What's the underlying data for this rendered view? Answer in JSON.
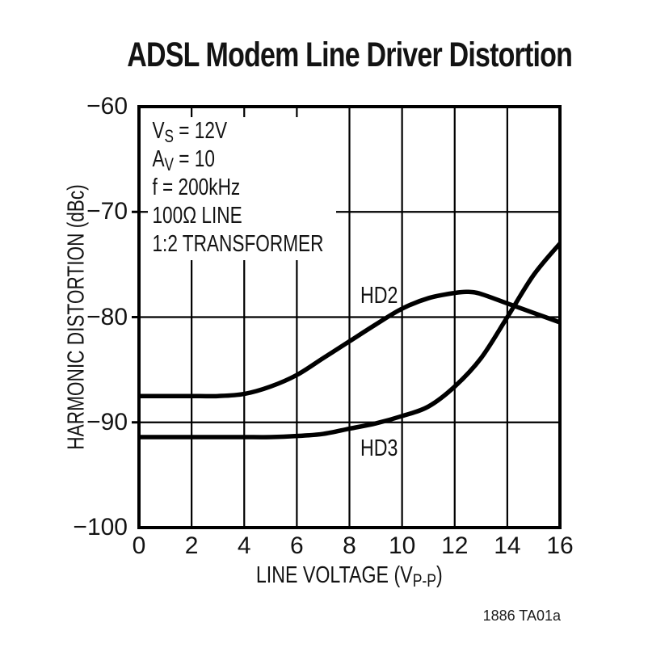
{
  "page": {
    "title": "ADSL Modem Line Driver Distortion",
    "figure_number": "1886 TA01a"
  },
  "annotation": {
    "lines": [
      {
        "pre": "V",
        "sub": "S",
        "post": " = 12V"
      },
      {
        "pre": "A",
        "sub": "V",
        "post": " = 10"
      },
      {
        "pre": "f = 200kHz",
        "sub": "",
        "post": ""
      },
      {
        "pre": "100Ω LINE",
        "sub": "",
        "post": ""
      },
      {
        "pre": "1:2 TRANSFORMER",
        "sub": "",
        "post": ""
      }
    ]
  },
  "chart_data": {
    "type": "line",
    "title": "ADSL Modem Line Driver Distortion",
    "ylabel": "HARMONIC DISTORTION (dBc)",
    "xlabel_parts": {
      "pre": "LINE VOLTAGE (V",
      "sub": "P-P",
      "post": ")"
    },
    "xlim": [
      0,
      16
    ],
    "ylim": [
      -100,
      -60
    ],
    "xticks": [
      0,
      2,
      4,
      6,
      8,
      10,
      12,
      14,
      16
    ],
    "yticks": [
      -60,
      -70,
      -80,
      -90,
      -100
    ],
    "grid": true,
    "legend_position": "inline-curve-labels",
    "line_color": "#000000",
    "conditions": [
      "VS = 12V",
      "AV = 10",
      "f = 200kHz",
      "100Ω LINE",
      "1:2 TRANSFORMER"
    ],
    "series": [
      {
        "name": "HD2",
        "label_pos": {
          "x": 8.4,
          "y": -78.0
        },
        "points": [
          [
            0,
            -87.5
          ],
          [
            1,
            -87.5
          ],
          [
            2,
            -87.5
          ],
          [
            3,
            -87.5
          ],
          [
            4,
            -87.3
          ],
          [
            5,
            -86.6
          ],
          [
            6,
            -85.5
          ],
          [
            7,
            -83.9
          ],
          [
            8,
            -82.3
          ],
          [
            9,
            -80.7
          ],
          [
            10,
            -79.2
          ],
          [
            11,
            -78.2
          ],
          [
            12,
            -77.7
          ],
          [
            12.5,
            -77.6
          ],
          [
            13,
            -77.8
          ],
          [
            14,
            -78.7
          ],
          [
            15,
            -79.6
          ],
          [
            16,
            -80.5
          ]
        ]
      },
      {
        "name": "HD3",
        "label_pos": {
          "x": 8.4,
          "y": -92.5
        },
        "points": [
          [
            0,
            -91.4
          ],
          [
            1,
            -91.4
          ],
          [
            2,
            -91.4
          ],
          [
            3,
            -91.4
          ],
          [
            4,
            -91.4
          ],
          [
            5,
            -91.4
          ],
          [
            6,
            -91.3
          ],
          [
            7,
            -91.1
          ],
          [
            8,
            -90.6
          ],
          [
            9,
            -90.1
          ],
          [
            10,
            -89.4
          ],
          [
            11,
            -88.5
          ],
          [
            12,
            -86.6
          ],
          [
            13,
            -83.9
          ],
          [
            14,
            -80.0
          ],
          [
            15,
            -76.0
          ],
          [
            16,
            -73.0
          ]
        ]
      }
    ]
  }
}
